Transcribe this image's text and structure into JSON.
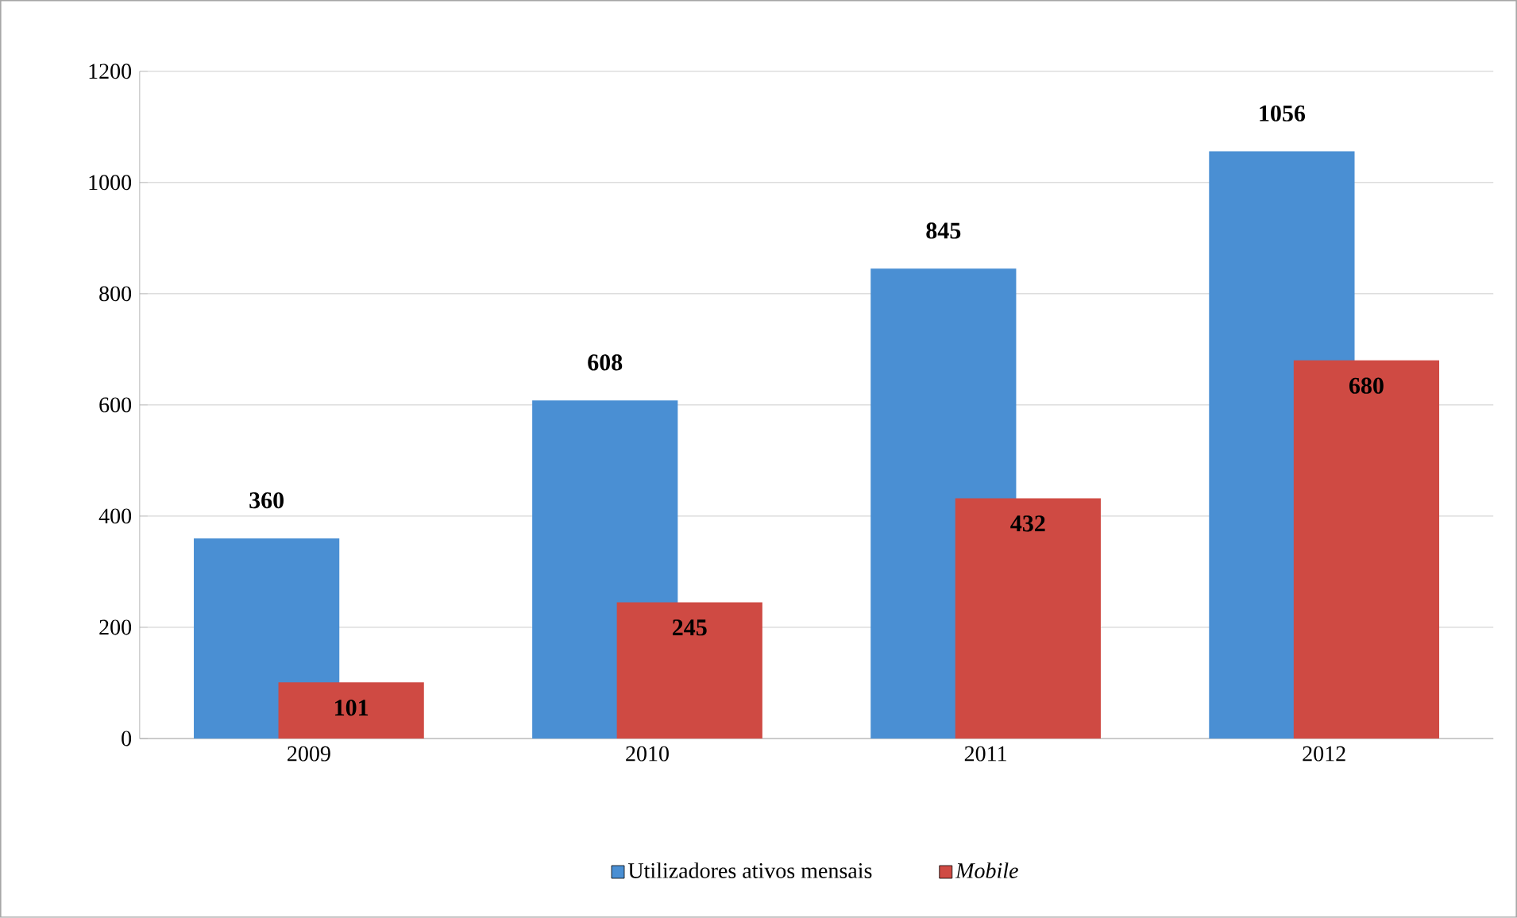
{
  "chart_data": {
    "type": "bar",
    "categories": [
      "2009",
      "2010",
      "2011",
      "2012"
    ],
    "series": [
      {
        "name": "Utilizadores ativos mensais",
        "color": "#4a8fd3",
        "values": [
          360,
          608,
          845,
          1056
        ]
      },
      {
        "name": "Mobile",
        "color": "#cf4a43",
        "values": [
          101,
          245,
          432,
          680
        ]
      }
    ],
    "ylim": [
      0,
      1200
    ],
    "yticks": [
      0,
      200,
      400,
      600,
      800,
      1000,
      1200
    ],
    "grid": "y",
    "legend": "bottom",
    "data_labels": true
  }
}
